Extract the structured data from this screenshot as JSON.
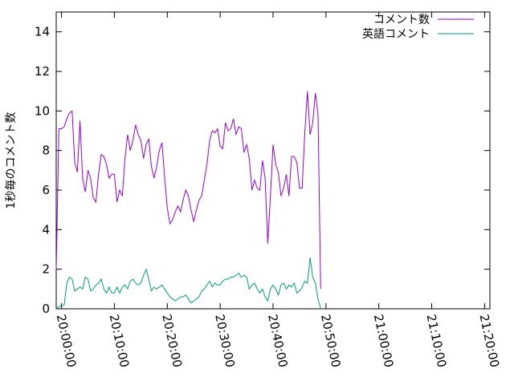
{
  "chart_data": {
    "type": "line",
    "title": "",
    "xlabel": "",
    "ylabel": "1秒毎のコメント数",
    "ylim": [
      0,
      15
    ],
    "y_ticks": [
      0,
      2,
      4,
      6,
      8,
      10,
      12,
      14
    ],
    "x_ticks": [
      "20:00:00",
      "20:10:00",
      "20:20:00",
      "20:30:00",
      "20:40:00",
      "20:50:00",
      "21:00:00",
      "21:10:00",
      "21:20:00"
    ],
    "xlim": [
      "19:59:00",
      "21:21:00"
    ],
    "legend_position": "top-right",
    "grid": false,
    "series": [
      {
        "name": "コメント数",
        "color": "#9400d3",
        "points": [
          [
            "19:59:00",
            2.0
          ],
          [
            "19:59:30",
            9.1
          ],
          [
            "20:00:00",
            9.1
          ],
          [
            "20:00:30",
            9.2
          ],
          [
            "20:01:00",
            9.6
          ],
          [
            "20:01:30",
            9.9
          ],
          [
            "20:02:00",
            10.0
          ],
          [
            "20:02:30",
            7.4
          ],
          [
            "20:03:00",
            6.9
          ],
          [
            "20:03:30",
            9.5
          ],
          [
            "20:04:00",
            6.6
          ],
          [
            "20:04:30",
            5.9
          ],
          [
            "20:05:00",
            7.0
          ],
          [
            "20:05:30",
            6.6
          ],
          [
            "20:06:00",
            5.6
          ],
          [
            "20:06:30",
            5.4
          ],
          [
            "20:07:00",
            6.8
          ],
          [
            "20:07:30",
            7.8
          ],
          [
            "20:08:00",
            7.7
          ],
          [
            "20:08:30",
            7.3
          ],
          [
            "20:09:00",
            6.6
          ],
          [
            "20:09:30",
            6.8
          ],
          [
            "20:10:00",
            6.8
          ],
          [
            "20:10:30",
            5.4
          ],
          [
            "20:11:00",
            6.0
          ],
          [
            "20:11:30",
            5.7
          ],
          [
            "20:12:00",
            7.6
          ],
          [
            "20:12:30",
            8.8
          ],
          [
            "20:13:00",
            8.0
          ],
          [
            "20:13:30",
            8.5
          ],
          [
            "20:14:00",
            9.3
          ],
          [
            "20:14:30",
            8.8
          ],
          [
            "20:15:00",
            8.5
          ],
          [
            "20:15:30",
            7.6
          ],
          [
            "20:16:00",
            8.3
          ],
          [
            "20:16:30",
            8.6
          ],
          [
            "20:17:00",
            7.2
          ],
          [
            "20:17:30",
            6.6
          ],
          [
            "20:18:00",
            7.2
          ],
          [
            "20:18:30",
            8.0
          ],
          [
            "20:19:00",
            8.4
          ],
          [
            "20:19:30",
            6.6
          ],
          [
            "20:20:00",
            5.1
          ],
          [
            "20:20:30",
            4.3
          ],
          [
            "20:21:00",
            4.5
          ],
          [
            "20:21:30",
            4.9
          ],
          [
            "20:22:00",
            5.2
          ],
          [
            "20:22:30",
            4.9
          ],
          [
            "20:23:00",
            5.5
          ],
          [
            "20:23:30",
            6.0
          ],
          [
            "20:24:00",
            5.7
          ],
          [
            "20:24:30",
            5.0
          ],
          [
            "20:25:00",
            4.4
          ],
          [
            "20:25:30",
            5.0
          ],
          [
            "20:26:00",
            5.5
          ],
          [
            "20:26:30",
            5.7
          ],
          [
            "20:27:00",
            6.5
          ],
          [
            "20:27:30",
            7.3
          ],
          [
            "20:28:00",
            8.5
          ],
          [
            "20:28:30",
            9.0
          ],
          [
            "20:29:00",
            8.9
          ],
          [
            "20:29:30",
            9.1
          ],
          [
            "20:30:00",
            8.2
          ],
          [
            "20:30:30",
            8.1
          ],
          [
            "20:31:00",
            9.4
          ],
          [
            "20:31:30",
            9.0
          ],
          [
            "20:32:00",
            9.1
          ],
          [
            "20:32:30",
            9.6
          ],
          [
            "20:33:00",
            8.8
          ],
          [
            "20:33:30",
            9.2
          ],
          [
            "20:34:00",
            9.1
          ],
          [
            "20:34:30",
            7.9
          ],
          [
            "20:35:00",
            8.3
          ],
          [
            "20:35:30",
            7.6
          ],
          [
            "20:36:00",
            6.0
          ],
          [
            "20:36:30",
            6.5
          ],
          [
            "20:37:00",
            6.1
          ],
          [
            "20:37:30",
            6.0
          ],
          [
            "20:38:00",
            7.5
          ],
          [
            "20:38:30",
            6.6
          ],
          [
            "20:39:00",
            3.3
          ],
          [
            "20:39:30",
            5.7
          ],
          [
            "20:40:00",
            8.3
          ],
          [
            "20:40:30",
            7.3
          ],
          [
            "20:41:00",
            6.9
          ],
          [
            "20:41:30",
            5.7
          ],
          [
            "20:42:00",
            6.1
          ],
          [
            "20:42:30",
            6.8
          ],
          [
            "20:43:00",
            5.7
          ],
          [
            "20:43:30",
            7.7
          ],
          [
            "20:44:00",
            7.7
          ],
          [
            "20:44:30",
            7.4
          ],
          [
            "20:45:00",
            6.1
          ],
          [
            "20:45:30",
            6.1
          ],
          [
            "20:46:00",
            8.9
          ],
          [
            "20:46:30",
            11.0
          ],
          [
            "20:47:00",
            8.8
          ],
          [
            "20:47:30",
            9.4
          ],
          [
            "20:48:00",
            10.9
          ],
          [
            "20:48:30",
            9.8
          ],
          [
            "20:49:00",
            1.0
          ]
        ]
      },
      {
        "name": "英語コメント",
        "color": "#009e73",
        "points": [
          [
            "19:59:00",
            0.0
          ],
          [
            "19:59:30",
            0.1
          ],
          [
            "20:00:00",
            0.15
          ],
          [
            "20:00:30",
            0.2
          ],
          [
            "20:01:00",
            1.3
          ],
          [
            "20:01:30",
            1.6
          ],
          [
            "20:02:00",
            1.5
          ],
          [
            "20:02:30",
            0.9
          ],
          [
            "20:03:00",
            1.0
          ],
          [
            "20:03:30",
            1.1
          ],
          [
            "20:04:00",
            1.0
          ],
          [
            "20:04:30",
            1.6
          ],
          [
            "20:05:00",
            1.5
          ],
          [
            "20:05:30",
            0.9
          ],
          [
            "20:06:00",
            1.0
          ],
          [
            "20:06:30",
            1.2
          ],
          [
            "20:07:00",
            1.3
          ],
          [
            "20:07:30",
            1.5
          ],
          [
            "20:08:00",
            1.0
          ],
          [
            "20:08:30",
            0.8
          ],
          [
            "20:09:00",
            1.1
          ],
          [
            "20:09:30",
            0.8
          ],
          [
            "20:10:00",
            0.8
          ],
          [
            "20:10:30",
            1.1
          ],
          [
            "20:11:00",
            0.8
          ],
          [
            "20:11:30",
            1.1
          ],
          [
            "20:12:00",
            1.2
          ],
          [
            "20:12:30",
            1.0
          ],
          [
            "20:13:00",
            1.4
          ],
          [
            "20:13:30",
            1.5
          ],
          [
            "20:14:00",
            1.3
          ],
          [
            "20:14:30",
            1.2
          ],
          [
            "20:15:00",
            1.3
          ],
          [
            "20:15:30",
            1.7
          ],
          [
            "20:16:00",
            2.0
          ],
          [
            "20:16:30",
            1.5
          ],
          [
            "20:17:00",
            0.9
          ],
          [
            "20:17:30",
            1.1
          ],
          [
            "20:18:00",
            1.0
          ],
          [
            "20:18:30",
            1.1
          ],
          [
            "20:19:00",
            1.2
          ],
          [
            "20:19:30",
            1.0
          ],
          [
            "20:20:00",
            0.8
          ],
          [
            "20:20:30",
            0.6
          ],
          [
            "20:21:00",
            0.5
          ],
          [
            "20:21:30",
            0.4
          ],
          [
            "20:22:00",
            0.5
          ],
          [
            "20:22:30",
            0.6
          ],
          [
            "20:23:00",
            0.6
          ],
          [
            "20:23:30",
            0.7
          ],
          [
            "20:24:00",
            0.5
          ],
          [
            "20:24:30",
            0.3
          ],
          [
            "20:25:00",
            0.4
          ],
          [
            "20:25:30",
            0.5
          ],
          [
            "20:26:00",
            0.6
          ],
          [
            "20:26:30",
            0.9
          ],
          [
            "20:27:00",
            1.0
          ],
          [
            "20:27:30",
            1.2
          ],
          [
            "20:28:00",
            1.4
          ],
          [
            "20:28:30",
            1.1
          ],
          [
            "20:29:00",
            1.3
          ],
          [
            "20:29:30",
            1.2
          ],
          [
            "20:30:00",
            1.2
          ],
          [
            "20:30:30",
            1.4
          ],
          [
            "20:31:00",
            1.5
          ],
          [
            "20:31:30",
            1.5
          ],
          [
            "20:32:00",
            1.6
          ],
          [
            "20:32:30",
            1.6
          ],
          [
            "20:33:00",
            1.7
          ],
          [
            "20:33:30",
            1.8
          ],
          [
            "20:34:00",
            1.6
          ],
          [
            "20:34:30",
            1.7
          ],
          [
            "20:35:00",
            1.6
          ],
          [
            "20:35:30",
            1.0
          ],
          [
            "20:36:00",
            1.2
          ],
          [
            "20:36:30",
            1.3
          ],
          [
            "20:37:00",
            1.0
          ],
          [
            "20:37:30",
            0.8
          ],
          [
            "20:38:00",
            1.0
          ],
          [
            "20:38:30",
            0.6
          ],
          [
            "20:39:00",
            0.4
          ],
          [
            "20:39:30",
            1.0
          ],
          [
            "20:40:00",
            1.2
          ],
          [
            "20:40:30",
            1.0
          ],
          [
            "20:41:00",
            0.7
          ],
          [
            "20:41:30",
            1.2
          ],
          [
            "20:42:00",
            1.3
          ],
          [
            "20:42:30",
            1.0
          ],
          [
            "20:43:00",
            1.2
          ],
          [
            "20:43:30",
            1.1
          ],
          [
            "20:44:00",
            1.3
          ],
          [
            "20:44:30",
            0.8
          ],
          [
            "20:45:00",
            0.9
          ],
          [
            "20:45:30",
            1.1
          ],
          [
            "20:46:00",
            1.4
          ],
          [
            "20:46:30",
            1.3
          ],
          [
            "20:47:00",
            2.6
          ],
          [
            "20:47:30",
            1.6
          ],
          [
            "20:48:00",
            1.3
          ],
          [
            "20:48:30",
            0.5
          ],
          [
            "20:49:00",
            0.0
          ]
        ]
      }
    ]
  }
}
